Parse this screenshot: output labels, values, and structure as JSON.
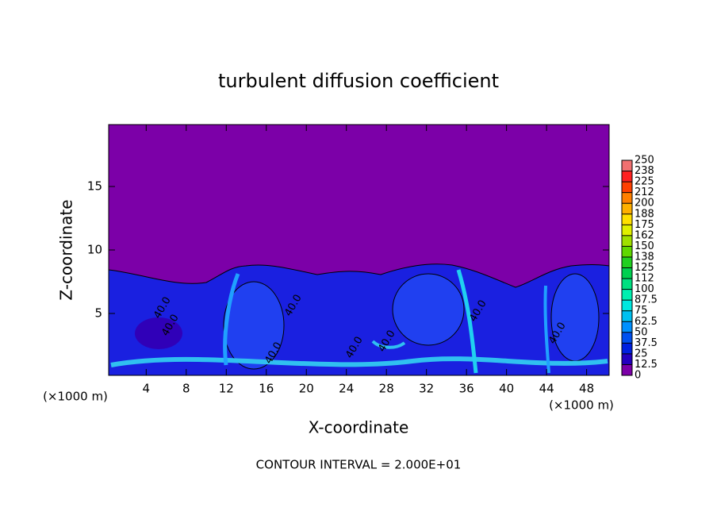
{
  "chart_data": {
    "type": "contour",
    "title": "turbulent diffusion coefficient",
    "xlabel": "X-coordinate",
    "ylabel": "Z-coordinate",
    "unit_label": "(×1000 m)",
    "footnote": "CONTOUR INTERVAL = 2.000E+01",
    "contour_labels": [
      "40.0",
      "40.0",
      "40.0",
      "40.0",
      "40.0",
      "40.0",
      "40.0",
      "40.0"
    ],
    "xlim": [
      0.25,
      50.25
    ],
    "ylim": [
      0.125,
      19.875
    ],
    "xticks": [
      4,
      8,
      12,
      16,
      20,
      24,
      28,
      32,
      36,
      40,
      44,
      48
    ],
    "yticks": [
      5,
      10,
      15
    ],
    "colorbar": {
      "ticks": [
        0,
        12.5,
        25,
        37.5,
        50,
        62.5,
        75,
        87.5,
        100,
        {
          "value": 112.5,
          "label": "112"
        },
        125,
        {
          "value": 137.5,
          "label": "138"
        },
        150,
        {
          "value": 162.5,
          "label": "162"
        },
        175,
        {
          "value": 187.5,
          "label": "188"
        },
        200,
        {
          "value": 212.5,
          "label": "212"
        },
        225,
        {
          "value": 237.5,
          "label": "238"
        },
        250
      ],
      "colors": [
        "#7c00a8",
        "#2400c0",
        "#0020e0",
        "#0050f0",
        "#0090ff",
        "#00c0f0",
        "#00e8e0",
        "#00f0b0",
        "#00e080",
        "#00d050",
        "#20d020",
        "#60d800",
        "#a0e000",
        "#e0f000",
        "#ffe000",
        "#ffb000",
        "#ff8000",
        "#ff4000",
        "#ff2020",
        "#f07070"
      ]
    }
  }
}
